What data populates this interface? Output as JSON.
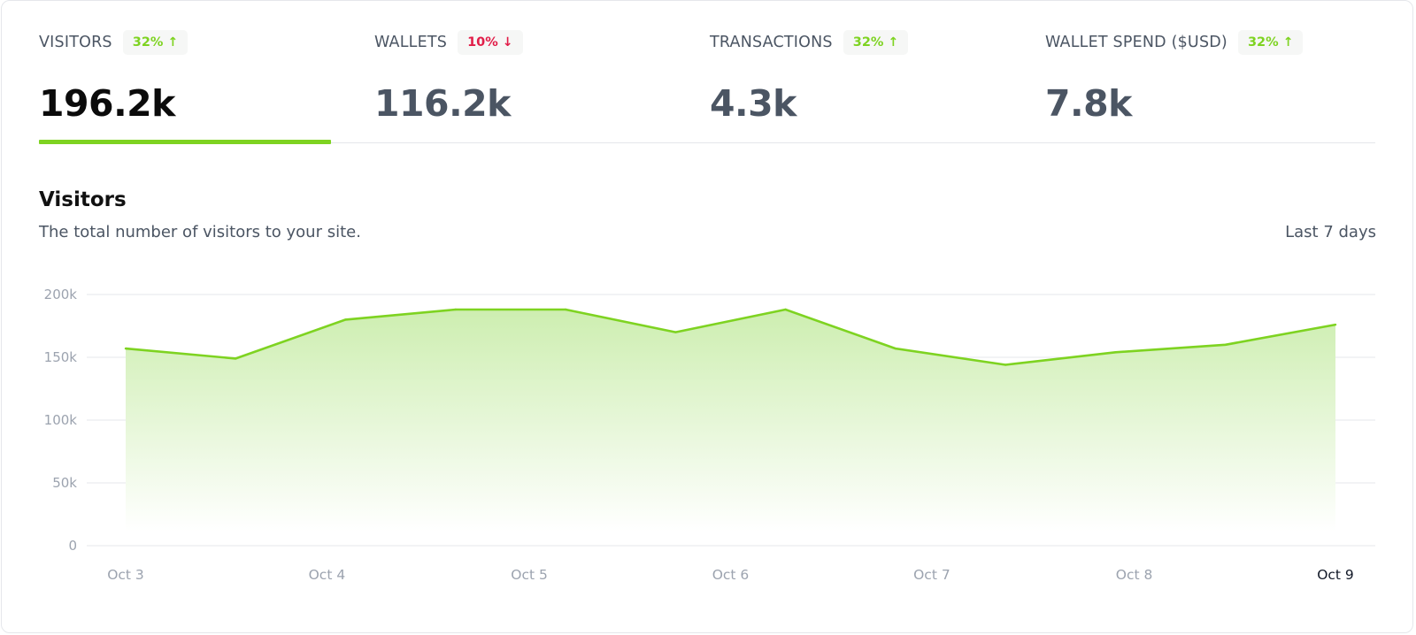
{
  "metrics": [
    {
      "label": "VISITORS",
      "change": "32%",
      "direction": "up",
      "value": "196.2k",
      "active": true
    },
    {
      "label": "WALLETS",
      "change": "10%",
      "direction": "down",
      "value": "116.2k",
      "active": false
    },
    {
      "label": "TRANSACTIONS",
      "change": "32%",
      "direction": "up",
      "value": "4.3k",
      "active": false
    },
    {
      "label": "WALLET SPEND ($USD)",
      "change": "32%",
      "direction": "up",
      "value": "7.8k",
      "active": false
    }
  ],
  "icons": {
    "up": "arrow-up-icon",
    "down": "arrow-down-icon"
  },
  "chart": {
    "title": "Visitors",
    "subtitle": "The total number of visitors to your site.",
    "period": "Last 7 days"
  },
  "colors": {
    "accent": "#7ed321",
    "negative": "#e11d48",
    "area_top": "#cdeeb0",
    "area_bottom": "#ffffff"
  },
  "chart_data": {
    "type": "area",
    "title": "Visitors",
    "xlabel": "",
    "ylabel": "",
    "ylim": [
      0,
      200000
    ],
    "yticks": [
      0,
      50000,
      100000,
      150000,
      200000
    ],
    "ytick_labels": [
      "0",
      "50k",
      "100k",
      "150k",
      "200k"
    ],
    "x_labels": [
      "Oct 3",
      "Oct 4",
      "Oct 5",
      "Oct 6",
      "Oct 7",
      "Oct 8",
      "Oct 9"
    ],
    "x_label_positions": [
      0,
      1.83,
      3.67,
      5.5,
      7.33,
      9.17,
      11
    ],
    "x": [
      0,
      1,
      2,
      3,
      4,
      5,
      6,
      7,
      8,
      9,
      10,
      11
    ],
    "values": [
      157000,
      149000,
      180000,
      188000,
      188000,
      170000,
      188000,
      157000,
      144000,
      154000,
      160000,
      176000
    ],
    "grid": true,
    "legend": "none"
  }
}
